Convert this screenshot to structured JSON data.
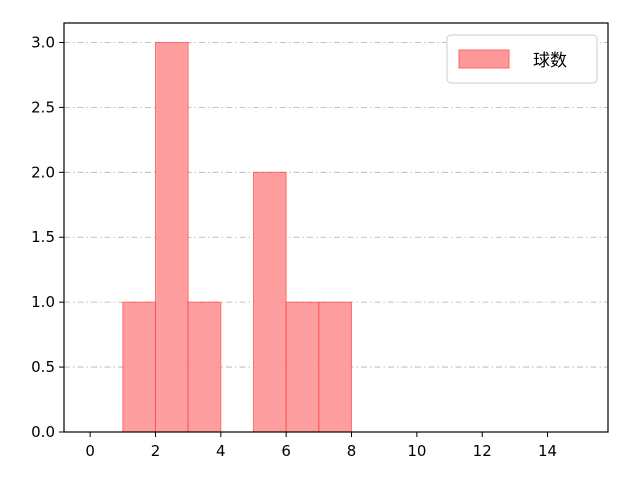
{
  "chart_data": {
    "type": "bar",
    "bins": [
      [
        1,
        2
      ],
      [
        2,
        3
      ],
      [
        3,
        4
      ],
      [
        4,
        5
      ],
      [
        5,
        6
      ],
      [
        6,
        7
      ],
      [
        7,
        8
      ]
    ],
    "values": [
      1,
      3,
      1,
      0,
      2,
      1,
      1
    ],
    "series": [
      {
        "name": "球数",
        "values": [
          1,
          3,
          1,
          0,
          2,
          1,
          1
        ]
      }
    ],
    "xlim": [
      -0.8,
      15.85
    ],
    "ylim": [
      0,
      3.15
    ],
    "xticks": [
      "0",
      "2",
      "4",
      "6",
      "8",
      "10",
      "12",
      "14"
    ],
    "yticks": [
      "0.0",
      "0.5",
      "1.0",
      "1.5",
      "2.0",
      "2.5",
      "3.0"
    ],
    "grid": "y-dashdot",
    "legend": "top-right",
    "colors": {
      "bar_fill": "#ff9999",
      "bar_edge": "#ff3333",
      "grid": "#b0b0b0"
    }
  }
}
